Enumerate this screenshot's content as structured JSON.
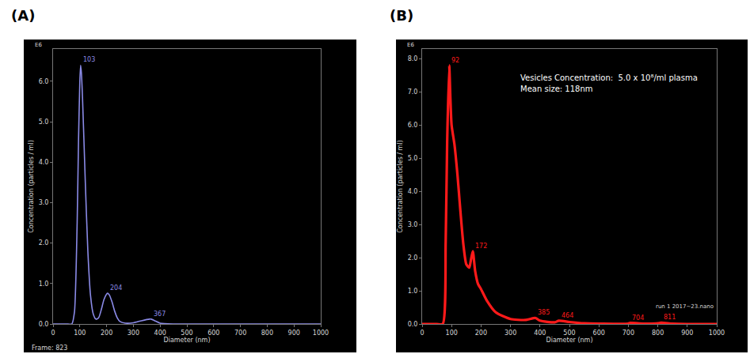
{
  "chart_data": [
    {
      "type": "line",
      "panel_label": "(A)",
      "x_label": "Diameter (nm)",
      "y_label": "Concentration (particles / ml)",
      "y_multiplier_label": "E6",
      "annotations": [
        "Frame: 823"
      ],
      "color": "#8a8ae6",
      "x": [
        0,
        50,
        70,
        80,
        90,
        95,
        100,
        103,
        106,
        110,
        120,
        130,
        140,
        150,
        160,
        170,
        180,
        190,
        200,
        204,
        210,
        220,
        230,
        240,
        250,
        270,
        300,
        330,
        360,
        367,
        380,
        400,
        450,
        500,
        600,
        700,
        800,
        900,
        1000
      ],
      "values": [
        0,
        0,
        0,
        0.3,
        2.5,
        4.5,
        6.0,
        6.4,
        6.2,
        5.6,
        3.6,
        1.8,
        0.7,
        0.25,
        0.12,
        0.15,
        0.35,
        0.6,
        0.74,
        0.76,
        0.72,
        0.55,
        0.32,
        0.15,
        0.06,
        0.02,
        0.03,
        0.08,
        0.12,
        0.12,
        0.08,
        0.02,
        0,
        0,
        0,
        0,
        0,
        0,
        0
      ],
      "peak_labels": [
        {
          "x": 103,
          "y": 6.4,
          "label": "103"
        },
        {
          "x": 204,
          "y": 0.76,
          "label": "204"
        },
        {
          "x": 367,
          "y": 0.12,
          "label": "367"
        }
      ],
      "xlim": [
        0,
        1000
      ],
      "xticks": [
        0,
        100,
        200,
        300,
        400,
        500,
        600,
        700,
        800,
        900,
        1000
      ],
      "ylim": [
        0,
        6.8
      ],
      "yticks": [
        {
          "value": 0,
          "label": "0.0"
        },
        {
          "value": 1,
          "label": "1.0"
        },
        {
          "value": 2,
          "label": "2.0"
        },
        {
          "value": 3,
          "label": "3.0"
        },
        {
          "value": 4,
          "label": "4.0"
        },
        {
          "value": 5,
          "label": "5.0"
        },
        {
          "value": 6,
          "label": "6.0"
        }
      ],
      "grid": false
    },
    {
      "type": "line",
      "panel_label": "(B)",
      "x_label": "Diameter (nm)",
      "y_label": "Concentration (particles / ml)",
      "y_multiplier_label": "E6",
      "annotations": [
        "Vesicles Concentration:  5.0 x 10⁸/ml plasma",
        "Mean size: 118nm",
        "run 1 2017~23.nano"
      ],
      "color": "#ff1a1a",
      "x": [
        0,
        50,
        70,
        80,
        85,
        92,
        96,
        100,
        110,
        120,
        130,
        140,
        150,
        160,
        165,
        172,
        180,
        190,
        200,
        220,
        250,
        300,
        350,
        385,
        400,
        450,
        464,
        500,
        550,
        600,
        700,
        704,
        750,
        800,
        811,
        850,
        900,
        1000
      ],
      "values": [
        0,
        0,
        0,
        2.5,
        5.5,
        7.8,
        6.8,
        6.0,
        5.4,
        4.5,
        3.4,
        2.4,
        1.8,
        1.7,
        1.9,
        2.2,
        1.6,
        1.2,
        1.05,
        0.7,
        0.35,
        0.15,
        0.12,
        0.18,
        0.1,
        0.05,
        0.1,
        0.06,
        0.02,
        0.01,
        0.01,
        0.03,
        0.01,
        0.02,
        0.04,
        0.01,
        0,
        0
      ],
      "peak_labels": [
        {
          "x": 92,
          "y": 7.8,
          "label": "92"
        },
        {
          "x": 172,
          "y": 2.2,
          "label": "172"
        },
        {
          "x": 385,
          "y": 0.18,
          "label": "385"
        },
        {
          "x": 464,
          "y": 0.1,
          "label": "464"
        },
        {
          "x": 704,
          "y": 0.03,
          "label": "704"
        },
        {
          "x": 811,
          "y": 0.04,
          "label": "811"
        }
      ],
      "xlim": [
        0,
        1000
      ],
      "xticks": [
        0,
        100,
        200,
        300,
        400,
        500,
        600,
        700,
        800,
        900,
        1000
      ],
      "ylim": [
        0,
        8.3
      ],
      "yticks": [
        {
          "value": 0,
          "label": "0.0"
        },
        {
          "value": 1,
          "label": "1.0"
        },
        {
          "value": 2,
          "label": "2.0"
        },
        {
          "value": 3,
          "label": "3.0"
        },
        {
          "value": 4,
          "label": "4.0"
        },
        {
          "value": 5,
          "label": "5.0"
        },
        {
          "value": 6,
          "label": "6.0"
        },
        {
          "value": 7,
          "label": "7.0"
        },
        {
          "value": 8,
          "label": "8.0"
        }
      ],
      "grid": false
    }
  ]
}
